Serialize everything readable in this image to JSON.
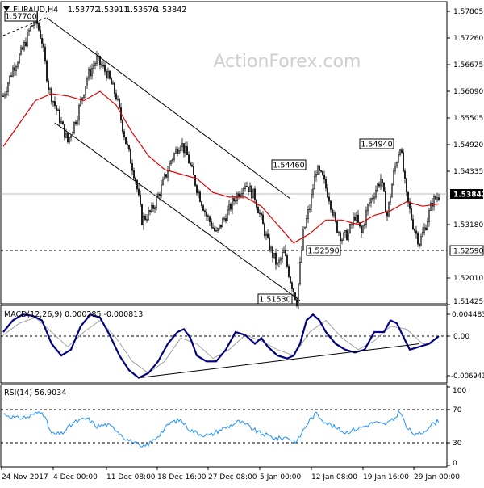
{
  "header": {
    "symbol": "EURAUD,H4",
    "open": "1.53772",
    "high": "1.53911",
    "low": "1.53676",
    "close": "1.53842"
  },
  "watermark": "ActionForex.com",
  "colors": {
    "candle": "#0a0a0a",
    "ma": "#e00000",
    "macd": "#000080",
    "signal": "#a0a0a0",
    "rsi": "#1e90ff",
    "level_tag_border": "#000000",
    "current_price_tag": "#000000"
  },
  "chart_data": [
    {
      "type": "candlestick",
      "title": "EURAUD,H4",
      "ylim": [
        1.5144,
        1.5795
      ],
      "y_ticks": [
        "1.57805",
        "1.57260",
        "1.56675",
        "1.56090",
        "1.55505",
        "1.54920",
        "1.54335",
        "1.53180",
        "1.52010",
        "1.51425"
      ],
      "x_ticks": [
        "24 Nov 2017",
        "4 Dec 00:00",
        "11 Dec 08:00",
        "18 Dec 16:00",
        "27 Dec 08:00",
        "5 Jan 00:00",
        "12 Jan 08:00",
        "19 Jan 16:00",
        "29 Jan 00:00"
      ],
      "current_price": "1.53842",
      "support_level": "1.52590",
      "annotations": [
        "1.57700",
        "1.54460",
        "1.52590",
        "1.51530",
        "1.54940"
      ],
      "price_path": [
        [
          0,
          1.56
        ],
        [
          6,
          1.566
        ],
        [
          12,
          1.57
        ],
        [
          16,
          1.574
        ],
        [
          20,
          1.577
        ],
        [
          24,
          1.572
        ],
        [
          28,
          1.562
        ],
        [
          34,
          1.556
        ],
        [
          40,
          1.55
        ],
        [
          46,
          1.556
        ],
        [
          52,
          1.564
        ],
        [
          58,
          1.568
        ],
        [
          64,
          1.565
        ],
        [
          70,
          1.56
        ],
        [
          76,
          1.55
        ],
        [
          82,
          1.542
        ],
        [
          86,
          1.533
        ],
        [
          92,
          1.535
        ],
        [
          98,
          1.54
        ],
        [
          104,
          1.546
        ],
        [
          110,
          1.55
        ],
        [
          114,
          1.547
        ],
        [
          120,
          1.54
        ],
        [
          126,
          1.534
        ],
        [
          132,
          1.53
        ],
        [
          138,
          1.534
        ],
        [
          144,
          1.538
        ],
        [
          150,
          1.541
        ],
        [
          156,
          1.538
        ],
        [
          160,
          1.533
        ],
        [
          164,
          1.528
        ],
        [
          170,
          1.523
        ],
        [
          174,
          1.526
        ],
        [
          178,
          1.52
        ],
        [
          182,
          1.5153
        ],
        [
          184,
          1.523
        ],
        [
          186,
          1.53
        ],
        [
          190,
          1.536
        ],
        [
          194,
          1.544
        ],
        [
          198,
          1.542
        ],
        [
          202,
          1.538
        ],
        [
          206,
          1.532
        ],
        [
          210,
          1.529
        ],
        [
          214,
          1.53
        ],
        [
          218,
          1.534
        ],
        [
          222,
          1.53
        ],
        [
          226,
          1.536
        ],
        [
          230,
          1.539
        ],
        [
          234,
          1.542
        ],
        [
          238,
          1.534
        ],
        [
          242,
          1.543
        ],
        [
          246,
          1.5494
        ],
        [
          250,
          1.538
        ],
        [
          254,
          1.532
        ],
        [
          258,
          1.528
        ],
        [
          262,
          1.532
        ],
        [
          266,
          1.537
        ],
        [
          270,
          1.5384
        ]
      ],
      "moving_average": [
        [
          0,
          1.549
        ],
        [
          10,
          1.554
        ],
        [
          20,
          1.559
        ],
        [
          30,
          1.5605
        ],
        [
          40,
          1.56
        ],
        [
          50,
          1.559
        ],
        [
          60,
          1.561
        ],
        [
          70,
          1.558
        ],
        [
          80,
          1.552
        ],
        [
          90,
          1.547
        ],
        [
          100,
          1.544
        ],
        [
          110,
          1.543
        ],
        [
          120,
          1.542
        ],
        [
          130,
          1.539
        ],
        [
          140,
          1.538
        ],
        [
          150,
          1.538
        ],
        [
          160,
          1.536
        ],
        [
          170,
          1.532
        ],
        [
          180,
          1.528
        ],
        [
          190,
          1.53
        ],
        [
          200,
          1.533
        ],
        [
          210,
          1.533
        ],
        [
          220,
          1.532
        ],
        [
          230,
          1.534
        ],
        [
          240,
          1.535
        ],
        [
          250,
          1.537
        ],
        [
          260,
          1.536
        ],
        [
          270,
          1.5365
        ]
      ]
    },
    {
      "type": "line",
      "title": "MACD(12,26,9) 0.000285 -0.000813",
      "ylim": [
        -0.0074,
        0.005
      ],
      "y_ticks": [
        "0.004483",
        "0.00",
        "-0.006941"
      ],
      "series": [
        {
          "name": "MACD",
          "points": [
            [
              0,
              0.001
            ],
            [
              6,
              0.003
            ],
            [
              12,
              0.004
            ],
            [
              18,
              0.0038
            ],
            [
              24,
              0.003
            ],
            [
              30,
              -0.001
            ],
            [
              36,
              -0.003
            ],
            [
              42,
              -0.002
            ],
            [
              48,
              0.002
            ],
            [
              54,
              0.004
            ],
            [
              60,
              0.0035
            ],
            [
              66,
              0.0005
            ],
            [
              72,
              -0.003
            ],
            [
              78,
              -0.0055
            ],
            [
              84,
              -0.0068
            ],
            [
              90,
              -0.006
            ],
            [
              96,
              -0.004
            ],
            [
              102,
              -0.001
            ],
            [
              108,
              0.001
            ],
            [
              112,
              0.0015
            ],
            [
              116,
              0.0
            ],
            [
              120,
              -0.003
            ],
            [
              126,
              -0.004
            ],
            [
              132,
              -0.004
            ],
            [
              138,
              -0.002
            ],
            [
              144,
              0.001
            ],
            [
              150,
              0.0005
            ],
            [
              156,
              -0.001
            ],
            [
              160,
              0.0
            ],
            [
              164,
              -0.0015
            ],
            [
              170,
              -0.003
            ],
            [
              176,
              -0.0035
            ],
            [
              180,
              -0.003
            ],
            [
              184,
              -0.001
            ],
            [
              188,
              0.003
            ],
            [
              192,
              0.004
            ],
            [
              196,
              0.003
            ],
            [
              200,
              0.001
            ],
            [
              206,
              -0.001
            ],
            [
              212,
              -0.002
            ],
            [
              218,
              -0.0025
            ],
            [
              224,
              -0.002
            ],
            [
              230,
              0.001
            ],
            [
              236,
              0.001
            ],
            [
              240,
              0.003
            ],
            [
              244,
              0.0025
            ],
            [
              248,
              0.0002
            ],
            [
              252,
              -0.002
            ],
            [
              258,
              -0.0015
            ],
            [
              264,
              -0.001
            ],
            [
              270,
              0.0003
            ]
          ]
        },
        {
          "name": "Signal",
          "points": [
            [
              0,
              0.0005
            ],
            [
              10,
              0.0025
            ],
            [
              20,
              0.0035
            ],
            [
              30,
              0.001
            ],
            [
              40,
              -0.0015
            ],
            [
              50,
              0.001
            ],
            [
              60,
              0.003
            ],
            [
              70,
              0.0
            ],
            [
              80,
              -0.004
            ],
            [
              90,
              -0.006
            ],
            [
              100,
              -0.004
            ],
            [
              110,
              0.0
            ],
            [
              120,
              -0.001
            ],
            [
              130,
              -0.0035
            ],
            [
              140,
              -0.002
            ],
            [
              150,
              0.0005
            ],
            [
              160,
              -0.0005
            ],
            [
              170,
              -0.002
            ],
            [
              180,
              -0.003
            ],
            [
              190,
              0.001
            ],
            [
              200,
              0.003
            ],
            [
              210,
              0.0
            ],
            [
              220,
              -0.002
            ],
            [
              230,
              -0.0005
            ],
            [
              240,
              0.002
            ],
            [
              250,
              0.0015
            ],
            [
              260,
              -0.001
            ],
            [
              270,
              -0.0008
            ]
          ]
        }
      ],
      "trendline": [
        [
          84,
          -0.0068
        ],
        [
          258,
          -0.001
        ]
      ]
    },
    {
      "type": "line",
      "title": "RSI(14) 56.9034",
      "ylim": [
        0,
        100
      ],
      "y_ticks": [
        "100",
        "70",
        "30",
        "0"
      ],
      "levels": [
        70,
        30
      ],
      "series": [
        {
          "name": "RSI",
          "points": [
            [
              0,
              66
            ],
            [
              8,
              60
            ],
            [
              16,
              62
            ],
            [
              24,
              70
            ],
            [
              30,
              40
            ],
            [
              36,
              40
            ],
            [
              44,
              55
            ],
            [
              52,
              60
            ],
            [
              58,
              50
            ],
            [
              64,
              52
            ],
            [
              70,
              46
            ],
            [
              76,
              34
            ],
            [
              82,
              28
            ],
            [
              86,
              22
            ],
            [
              92,
              30
            ],
            [
              98,
              42
            ],
            [
              104,
              55
            ],
            [
              110,
              58
            ],
            [
              116,
              45
            ],
            [
              122,
              40
            ],
            [
              128,
              38
            ],
            [
              134,
              45
            ],
            [
              140,
              50
            ],
            [
              146,
              56
            ],
            [
              152,
              50
            ],
            [
              158,
              42
            ],
            [
              164,
              38
            ],
            [
              170,
              34
            ],
            [
              176,
              36
            ],
            [
              182,
              30
            ],
            [
              186,
              45
            ],
            [
              190,
              58
            ],
            [
              194,
              66
            ],
            [
              200,
              55
            ],
            [
              206,
              48
            ],
            [
              212,
              42
            ],
            [
              218,
              46
            ],
            [
              224,
              50
            ],
            [
              230,
              55
            ],
            [
              236,
              52
            ],
            [
              242,
              58
            ],
            [
              246,
              70
            ],
            [
              250,
              48
            ],
            [
              256,
              38
            ],
            [
              260,
              42
            ],
            [
              264,
              50
            ],
            [
              270,
              57
            ]
          ]
        }
      ]
    }
  ]
}
